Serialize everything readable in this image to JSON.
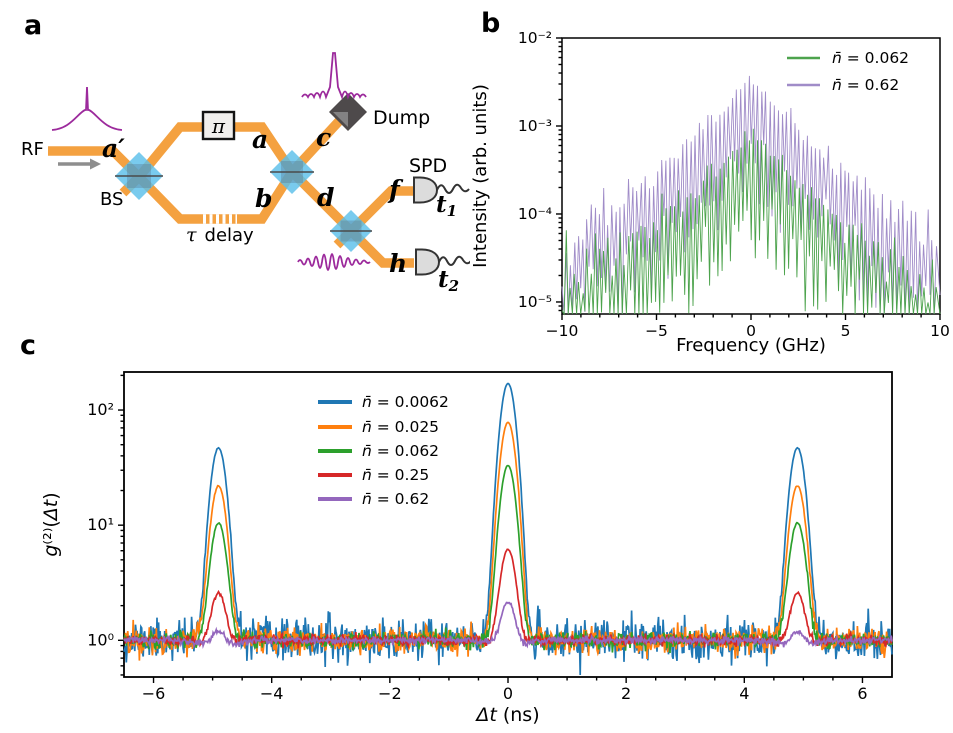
{
  "page": {
    "panel_labels": {
      "a": "a",
      "b": "b",
      "c": "c"
    }
  },
  "diagram": {
    "labels": {
      "rf": "RF",
      "input_mode": "a′",
      "bs": "BS",
      "phase": "π",
      "tau": "τ",
      "delay": "delay",
      "mode_a": "a",
      "mode_b": "b",
      "mode_c": "c",
      "mode_d": "d",
      "mode_f": "f",
      "mode_h": "h",
      "dump": "Dump",
      "spd": "SPD",
      "t_base": "t",
      "t1_sub": "1",
      "t2_sub": "2"
    },
    "colors": {
      "waveguide": "#f4a140",
      "splitter": "#5bc0ea",
      "splitter_inner": "#55748c",
      "pulse": "#9c2a9c",
      "dump": "#4e4a4b",
      "dump_inner": "#969696",
      "detector_fill": "#dcdcdc",
      "detector_stroke": "#333333",
      "arrow": "#8e8e8e"
    }
  },
  "chart_data": [
    {
      "id": "spectrum",
      "panel": "b",
      "type": "line",
      "xlabel_parts": [
        [
          "Frequency (GHz)",
          "n"
        ]
      ],
      "ylabel_parts": [
        [
          "Intensity (arb. units)",
          "n"
        ]
      ],
      "xlim": [
        -10,
        10
      ],
      "ylim": [
        7.3e-06,
        0.01
      ],
      "yscale": "log",
      "grid": false,
      "xticks": {
        "values": [
          -10,
          -5,
          0,
          5,
          10
        ],
        "labels": [
          "−10",
          "−5",
          "0",
          "5",
          "10"
        ]
      },
      "xminor_step": 1,
      "yticks": {
        "values": [
          1e-05,
          0.0001,
          0.001,
          0.01
        ],
        "labels": [
          "10⁻⁵",
          "10⁻⁴",
          "10⁻³",
          "10⁻²"
        ]
      },
      "comb_spacing_ghz": 0.22,
      "series": [
        {
          "label": "n̄ = 0.62",
          "label_parts": [
            [
              "n̄",
              "i"
            ],
            [
              " = 0.62",
              "n"
            ]
          ],
          "color": "#a08cc8",
          "peak": 0.0033,
          "decay_per_ghz": 0.22,
          "floor": 3e-05,
          "seed": 42
        },
        {
          "label": "n̄ = 0.062",
          "label_parts": [
            [
              "n̄",
              "i"
            ],
            [
              " = 0.062",
              "n"
            ]
          ],
          "color": "#4da34d",
          "peak": 0.00085,
          "decay_per_ghz": 0.23,
          "floor": 1.6e-05,
          "seed": 7
        }
      ],
      "legend": [
        {
          "label_parts": [
            [
              "n̄",
              "i"
            ],
            [
              " = 0.062",
              "n"
            ]
          ],
          "color": "#4da34d"
        },
        {
          "label_parts": [
            [
              "n̄",
              "i"
            ],
            [
              " = 0.62",
              "n"
            ]
          ],
          "color": "#a08cc8"
        }
      ],
      "legend_position": "upper right"
    },
    {
      "id": "g2",
      "panel": "c",
      "type": "line",
      "xlabel_parts": [
        [
          "Δt",
          "i"
        ],
        [
          " (ns)",
          "n"
        ]
      ],
      "ylabel_parts": [
        [
          "g",
          "i"
        ],
        [
          "⁽²⁾",
          "n"
        ],
        [
          "(",
          "n"
        ],
        [
          "Δt",
          "i"
        ],
        [
          ")",
          "n"
        ]
      ],
      "xlim": [
        -6.5,
        6.5
      ],
      "ylim": [
        0.48,
        214
      ],
      "yscale": "log",
      "grid": false,
      "xticks": {
        "values": [
          -6,
          -4,
          -2,
          0,
          2,
          4,
          6
        ],
        "labels": [
          "−6",
          "−4",
          "−2",
          "0",
          "2",
          "4",
          "6"
        ]
      },
      "xminor_step": 0.5,
      "yticks": {
        "values": [
          1,
          10,
          100
        ],
        "labels": [
          "10⁰",
          "10¹",
          "10²"
        ]
      },
      "baseline": 1,
      "peak_positions_ns": [
        -4.9,
        0,
        4.9
      ],
      "peak_sigma_ns": 0.15,
      "series": [
        {
          "label": "n̄ = 0.0062",
          "label_parts": [
            [
              "n̄",
              "i"
            ],
            [
              " = 0.0062",
              "n"
            ]
          ],
          "color": "#1f77b4",
          "center_peak": 170,
          "side_peak": 47,
          "noise_sigma": 0.2,
          "dip": 0,
          "seed": 11
        },
        {
          "label": "n̄ = 0.025",
          "label_parts": [
            [
              "n̄",
              "i"
            ],
            [
              " = 0.025",
              "n"
            ]
          ],
          "color": "#ff7f0e",
          "center_peak": 78,
          "side_peak": 22,
          "noise_sigma": 0.13,
          "dip": 0.02,
          "seed": 22
        },
        {
          "label": "n̄ = 0.062",
          "label_parts": [
            [
              "n̄",
              "i"
            ],
            [
              " = 0.062",
              "n"
            ]
          ],
          "color": "#2ca02c",
          "center_peak": 33,
          "side_peak": 10.5,
          "noise_sigma": 0.08,
          "dip": 0.05,
          "seed": 33
        },
        {
          "label": "n̄ = 0.25",
          "label_parts": [
            [
              "n̄",
              "i"
            ],
            [
              " = 0.25",
              "n"
            ]
          ],
          "color": "#d62728",
          "center_peak": 6.3,
          "side_peak": 2.7,
          "noise_sigma": 0.05,
          "dip": 0.13,
          "seed": 44
        },
        {
          "label": "n̄ = 0.62",
          "label_parts": [
            [
              "n̄",
              "i"
            ],
            [
              " = 0.62",
              "n"
            ]
          ],
          "color": "#9467bd",
          "center_peak": 2.3,
          "side_peak": 1.35,
          "noise_sigma": 0.035,
          "dip": 0.15,
          "seed": 55
        }
      ],
      "legend_position": "upper left"
    }
  ]
}
